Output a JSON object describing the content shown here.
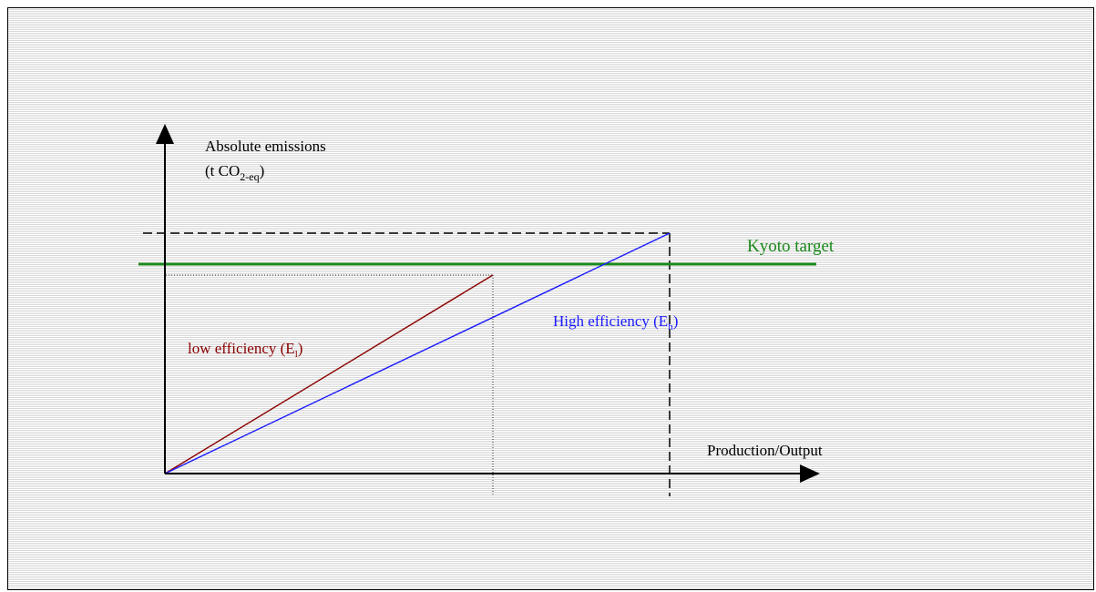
{
  "y_axis": {
    "label_line1": "Absolute emissions",
    "label_line2_prefix": "(t CO",
    "label_line2_subscript": "2-eq",
    "label_line2_suffix": ")"
  },
  "x_axis": {
    "label": "Production/Output"
  },
  "kyoto_line": {
    "label": "Kyoto target",
    "color": "#1a8a1a"
  },
  "low_efficiency": {
    "label_prefix": "low efficiency (E",
    "label_subscript": "l",
    "label_suffix": ")",
    "color": "#8b0000"
  },
  "high_efficiency": {
    "label_prefix": "High efficiency (E",
    "label_subscript": "h",
    "label_suffix": ")",
    "color": "#1a1aff"
  }
}
